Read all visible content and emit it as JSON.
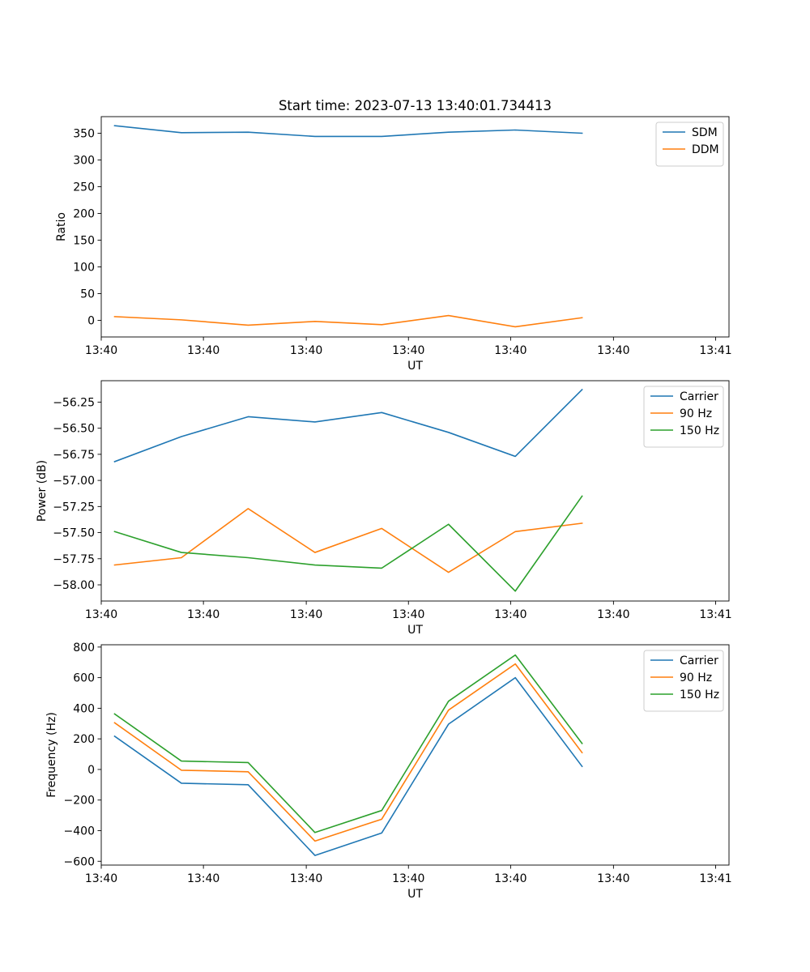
{
  "figure_title": "Start time: 2023-07-13 13:40:01.734413",
  "colors": {
    "blue": "#1f77b4",
    "orange": "#ff7f0e",
    "green": "#2ca02c"
  },
  "chart_data": [
    {
      "type": "line",
      "title": "Start time: 2023-07-13 13:40:01.734413",
      "xlabel": "UT",
      "ylabel": "Ratio",
      "x": [
        1,
        2,
        3,
        4,
        5,
        6,
        7,
        8
      ],
      "xlim": [
        0.8,
        10.2
      ],
      "ylim": [
        -31,
        381
      ],
      "xticks": [
        0.8,
        2.33,
        3.87,
        5.4,
        6.93,
        8.47,
        10.0
      ],
      "xtick_labels": [
        "13:40",
        "13:40",
        "13:40",
        "13:40",
        "13:40",
        "13:40",
        "13:41"
      ],
      "yticks": [
        0,
        50,
        100,
        150,
        200,
        250,
        300,
        350
      ],
      "ytick_labels": [
        "0",
        "50",
        "100",
        "150",
        "200",
        "250",
        "300",
        "350"
      ],
      "legend_position": "top-right",
      "series": [
        {
          "name": "SDM",
          "color": "#1f77b4",
          "values": [
            364,
            351,
            352,
            344,
            344,
            352,
            356,
            350
          ]
        },
        {
          "name": "DDM",
          "color": "#ff7f0e",
          "values": [
            7,
            1,
            -9,
            -2,
            -8,
            9,
            -12,
            5
          ]
        }
      ]
    },
    {
      "type": "line",
      "title": "",
      "xlabel": "UT",
      "ylabel": "Power (dB)",
      "x": [
        1,
        2,
        3,
        4,
        5,
        6,
        7,
        8
      ],
      "xlim": [
        0.8,
        10.2
      ],
      "ylim": [
        -58.155,
        -56.045
      ],
      "xticks": [
        0.8,
        2.33,
        3.87,
        5.4,
        6.93,
        8.47,
        10.0
      ],
      "xtick_labels": [
        "13:40",
        "13:40",
        "13:40",
        "13:40",
        "13:40",
        "13:40",
        "13:41"
      ],
      "yticks": [
        -58.0,
        -57.75,
        -57.5,
        -57.25,
        -57.0,
        -56.75,
        -56.5,
        -56.25
      ],
      "ytick_labels": [
        "−58.00",
        "−57.75",
        "−57.50",
        "−57.25",
        "−57.00",
        "−56.75",
        "−56.50",
        "−56.25"
      ],
      "legend_position": "top-right",
      "series": [
        {
          "name": "Carrier",
          "color": "#1f77b4",
          "values": [
            -56.82,
            -56.58,
            -56.39,
            -56.44,
            -56.35,
            -56.54,
            -56.77,
            -56.13
          ]
        },
        {
          "name": "90 Hz",
          "color": "#ff7f0e",
          "values": [
            -57.81,
            -57.74,
            -57.27,
            -57.69,
            -57.46,
            -57.88,
            -57.49,
            -57.41
          ]
        },
        {
          "name": "150 Hz",
          "color": "#2ca02c",
          "values": [
            -57.49,
            -57.69,
            -57.74,
            -57.81,
            -57.84,
            -57.42,
            -58.06,
            -57.15
          ]
        }
      ]
    },
    {
      "type": "line",
      "title": "",
      "xlabel": "UT",
      "ylabel": "Frequency (Hz)",
      "x": [
        1,
        2,
        3,
        4,
        5,
        6,
        7,
        8
      ],
      "xlim": [
        0.8,
        10.2
      ],
      "ylim": [
        -625,
        815
      ],
      "xticks": [
        0.8,
        2.33,
        3.87,
        5.4,
        6.93,
        8.47,
        10.0
      ],
      "xtick_labels": [
        "13:40",
        "13:40",
        "13:40",
        "13:40",
        "13:40",
        "13:40",
        "13:41"
      ],
      "yticks": [
        -600,
        -400,
        -200,
        0,
        200,
        400,
        600,
        800
      ],
      "ytick_labels": [
        "−600",
        "−400",
        "−200",
        "0",
        "200",
        "400",
        "600",
        "800"
      ],
      "legend_position": "top-right",
      "series": [
        {
          "name": "Carrier",
          "color": "#1f77b4",
          "values": [
            217,
            -90,
            -100,
            -562,
            -415,
            296,
            600,
            20
          ]
        },
        {
          "name": "90 Hz",
          "color": "#ff7f0e",
          "values": [
            305,
            -5,
            -15,
            -468,
            -325,
            388,
            690,
            110
          ]
        },
        {
          "name": "150 Hz",
          "color": "#2ca02c",
          "values": [
            363,
            55,
            45,
            -412,
            -268,
            446,
            748,
            170
          ]
        }
      ]
    }
  ]
}
